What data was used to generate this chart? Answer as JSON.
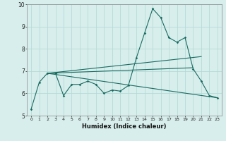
{
  "xlabel": "Humidex (Indice chaleur)",
  "xlim": [
    -0.5,
    23.5
  ],
  "ylim": [
    5,
    10
  ],
  "yticks": [
    5,
    6,
    7,
    8,
    9,
    10
  ],
  "xticks": [
    0,
    1,
    2,
    3,
    4,
    5,
    6,
    7,
    8,
    9,
    10,
    11,
    12,
    13,
    14,
    15,
    16,
    17,
    18,
    19,
    20,
    21,
    22,
    23
  ],
  "background_color": "#d7eeec",
  "grid_color": "#b0d8d4",
  "line_color": "#1a6b60",
  "line1_x": [
    0,
    1,
    2,
    3,
    4,
    5,
    6,
    7,
    8,
    9,
    10,
    11,
    12,
    13,
    14,
    15,
    16,
    17,
    18,
    19,
    20,
    21,
    22,
    23
  ],
  "line1_y": [
    5.3,
    6.5,
    6.9,
    6.9,
    5.9,
    6.4,
    6.4,
    6.55,
    6.4,
    6.0,
    6.15,
    6.1,
    6.35,
    7.6,
    8.7,
    9.8,
    9.4,
    8.5,
    8.3,
    8.5,
    7.1,
    6.55,
    5.9,
    5.8
  ],
  "line2_x": [
    2,
    23
  ],
  "line2_y": [
    6.9,
    5.8
  ],
  "line3_x": [
    2,
    21
  ],
  "line3_y": [
    6.9,
    7.65
  ],
  "line4_x": [
    2,
    20
  ],
  "line4_y": [
    6.9,
    7.15
  ]
}
